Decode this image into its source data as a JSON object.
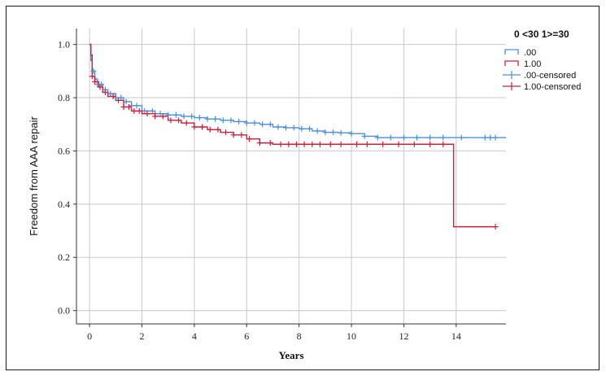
{
  "chart_data": {
    "type": "line",
    "subtype": "kaplan-meier",
    "xlabel": "Years",
    "ylabel": "Freedom from AAA repair",
    "xlim": [
      -0.5,
      15.9
    ],
    "ylim": [
      -0.05,
      1.06
    ],
    "xticks": [
      0,
      2,
      4,
      6,
      8,
      10,
      12,
      14
    ],
    "yticks": [
      0.0,
      0.2,
      0.4,
      0.6,
      0.8,
      1.0
    ],
    "ytick_labels": [
      "0.0",
      "0.2",
      "0.4",
      "0.6",
      "0.8",
      "1.0"
    ],
    "grid": true,
    "legend": {
      "title": "0 <30 1>=30",
      "position": "top-right",
      "entries": [
        ".00",
        "1.00",
        ".00-censored",
        "1.00-censored"
      ]
    },
    "colors": {
      ".00": "#4a90d9",
      "1.00": "#cc1f3a"
    },
    "series": [
      {
        "name": ".00",
        "x": [
          0,
          0.05,
          0.1,
          0.2,
          0.3,
          0.5,
          0.7,
          1.0,
          1.3,
          1.6,
          2.0,
          2.5,
          3.0,
          3.5,
          4.0,
          4.5,
          5.0,
          5.5,
          6.0,
          6.5,
          7.0,
          7.5,
          8.0,
          8.5,
          9.0,
          9.5,
          10.0,
          10.5,
          11.0,
          12.0,
          13.0,
          14.0,
          15.0,
          15.9
        ],
        "y": [
          1.0,
          0.94,
          0.9,
          0.87,
          0.85,
          0.83,
          0.815,
          0.8,
          0.785,
          0.77,
          0.75,
          0.74,
          0.735,
          0.73,
          0.725,
          0.72,
          0.715,
          0.71,
          0.705,
          0.7,
          0.69,
          0.687,
          0.683,
          0.675,
          0.67,
          0.668,
          0.665,
          0.655,
          0.65,
          0.65,
          0.65,
          0.65,
          0.65,
          0.65
        ],
        "censored_x": [
          0.15,
          0.3,
          0.45,
          0.6,
          0.8,
          1.0,
          1.2,
          1.4,
          1.6,
          1.8,
          2.1,
          2.4,
          2.7,
          3.0,
          3.3,
          3.6,
          3.9,
          4.2,
          4.5,
          4.8,
          5.1,
          5.4,
          5.7,
          6.0,
          6.3,
          6.6,
          6.9,
          7.2,
          7.5,
          7.8,
          8.1,
          8.4,
          8.7,
          9.0,
          9.3,
          9.6,
          10.0,
          10.5,
          11.0,
          11.5,
          12.0,
          12.5,
          13.0,
          13.5,
          14.2,
          15.1,
          15.3,
          15.5
        ]
      },
      {
        "name": "1.00",
        "x": [
          0,
          0.05,
          0.1,
          0.2,
          0.35,
          0.5,
          0.7,
          1.0,
          1.3,
          1.6,
          2.0,
          2.5,
          3.0,
          3.5,
          4.0,
          4.5,
          5.0,
          5.5,
          6.0,
          6.5,
          7.0,
          8.0,
          9.0,
          10.0,
          12.0,
          13.9,
          13.9,
          15.5
        ],
        "y": [
          1.0,
          0.96,
          0.88,
          0.86,
          0.84,
          0.82,
          0.805,
          0.79,
          0.765,
          0.75,
          0.74,
          0.73,
          0.715,
          0.705,
          0.69,
          0.68,
          0.67,
          0.66,
          0.645,
          0.63,
          0.625,
          0.625,
          0.625,
          0.625,
          0.625,
          0.625,
          0.315,
          0.315
        ],
        "censored_x": [
          0.1,
          0.2,
          0.4,
          0.6,
          0.9,
          1.1,
          1.3,
          1.5,
          1.7,
          1.9,
          2.2,
          2.5,
          2.8,
          3.1,
          3.4,
          3.7,
          4.0,
          4.3,
          4.6,
          4.9,
          5.2,
          5.5,
          5.8,
          6.1,
          6.5,
          6.9,
          7.3,
          7.6,
          7.9,
          8.2,
          8.5,
          8.8,
          9.2,
          9.6,
          10.2,
          10.6,
          11.2,
          11.8,
          12.4,
          13.0,
          13.5,
          15.5
        ]
      }
    ]
  }
}
